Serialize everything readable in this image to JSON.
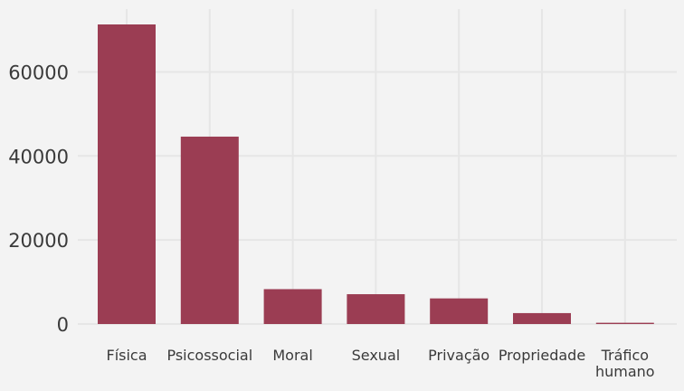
{
  "chart_data": {
    "type": "bar",
    "title": "",
    "xlabel": "",
    "ylabel": "",
    "categories": [
      "Física",
      "Psicossocial",
      "Moral",
      "Sexual",
      "Privação",
      "Propriedade",
      "Tráfico humano"
    ],
    "category_lines": [
      [
        "Física"
      ],
      [
        "Psicossocial"
      ],
      [
        "Moral"
      ],
      [
        "Sexual"
      ],
      [
        "Privação"
      ],
      [
        "Propriedade"
      ],
      [
        "Tráfico",
        "humano"
      ]
    ],
    "values": [
      71300,
      44600,
      8300,
      7100,
      6100,
      2600,
      300
    ],
    "ylim": [
      0,
      71300
    ],
    "yticks": [
      0,
      20000,
      40000,
      60000
    ],
    "ytick_labels": [
      "0",
      "20000",
      "40000",
      "60000"
    ],
    "bar_color": "#9b3d53",
    "grid": true,
    "legend": "none"
  }
}
